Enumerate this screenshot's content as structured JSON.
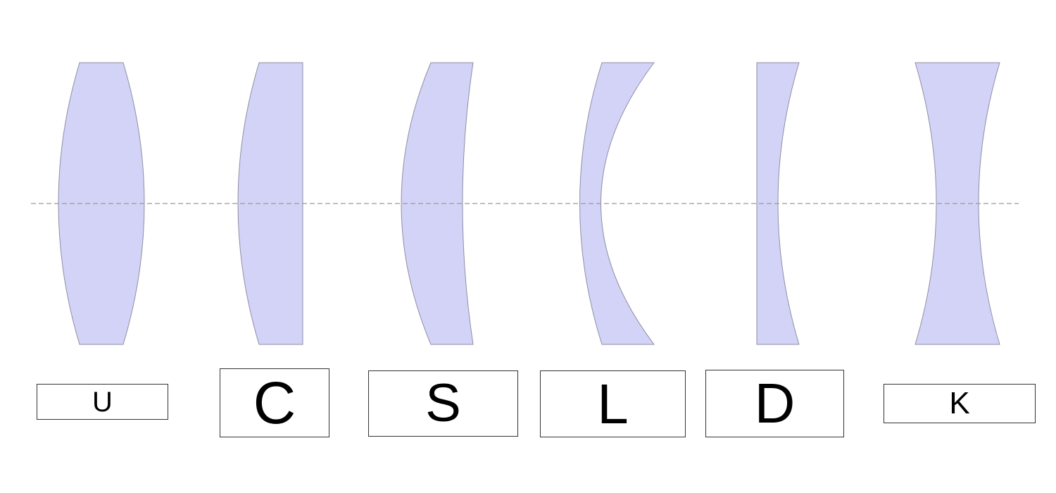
{
  "colors": {
    "lens_fill": "#d3d3f7",
    "lens_stroke": "#8e8ea6",
    "axis": "#9a9a9a"
  },
  "optical_axis": {
    "style": "dashed"
  },
  "lenses": [
    {
      "id": "lens-1",
      "shape": "biconvex",
      "label": "U"
    },
    {
      "id": "lens-2",
      "shape": "plano-convex",
      "label": "C"
    },
    {
      "id": "lens-3",
      "shape": "positive-meniscus",
      "label": "S"
    },
    {
      "id": "lens-4",
      "shape": "negative-meniscus",
      "label": "L"
    },
    {
      "id": "lens-5",
      "shape": "plano-concave",
      "label": "D"
    },
    {
      "id": "lens-6",
      "shape": "biconcave",
      "label": "K"
    }
  ]
}
